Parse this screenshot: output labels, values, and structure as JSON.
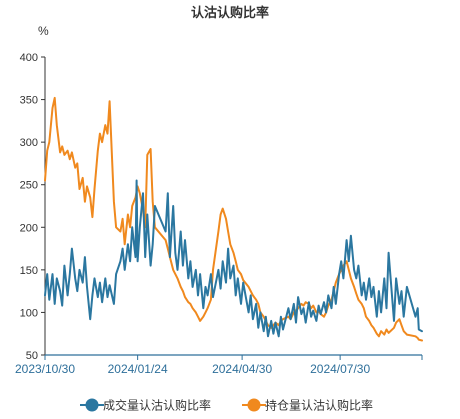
{
  "chart_data": {
    "type": "line",
    "title": "认沽认购比率",
    "unit_label": "%",
    "ylim": [
      50,
      400
    ],
    "yticks": [
      50,
      100,
      150,
      200,
      250,
      300,
      350,
      400
    ],
    "xlim": [
      "2023-10-30",
      "2024-10-14"
    ],
    "xticks": [
      "2023/10/30",
      "2024/01/24",
      "2024/04/30",
      "2024/07/30"
    ],
    "grid": false,
    "legend_position": "bottom",
    "series": [
      {
        "name": "成交量认沽认购比率",
        "color": "#2b77a0",
        "points": [
          [
            "2023-10-30",
            120
          ],
          [
            "2023-11-01",
            145
          ],
          [
            "2023-11-03",
            115
          ],
          [
            "2023-11-06",
            145
          ],
          [
            "2023-11-08",
            110
          ],
          [
            "2023-11-10",
            140
          ],
          [
            "2023-11-13",
            125
          ],
          [
            "2023-11-15",
            108
          ],
          [
            "2023-11-17",
            155
          ],
          [
            "2023-11-20",
            120
          ],
          [
            "2023-11-22",
            145
          ],
          [
            "2023-11-24",
            175
          ],
          [
            "2023-11-27",
            140
          ],
          [
            "2023-11-29",
            125
          ],
          [
            "2023-12-01",
            150
          ],
          [
            "2023-12-04",
            135
          ],
          [
            "2023-12-06",
            165
          ],
          [
            "2023-12-08",
            130
          ],
          [
            "2023-12-11",
            92
          ],
          [
            "2023-12-13",
            120
          ],
          [
            "2023-12-15",
            140
          ],
          [
            "2023-12-18",
            118
          ],
          [
            "2023-12-20",
            135
          ],
          [
            "2023-12-22",
            112
          ],
          [
            "2023-12-25",
            140
          ],
          [
            "2023-12-27",
            118
          ],
          [
            "2023-12-29",
            132
          ],
          [
            "2024-01-02",
            110
          ],
          [
            "2024-01-04",
            145
          ],
          [
            "2024-01-08",
            160
          ],
          [
            "2024-01-10",
            175
          ],
          [
            "2024-01-12",
            150
          ],
          [
            "2024-01-15",
            180
          ],
          [
            "2024-01-17",
            160
          ],
          [
            "2024-01-19",
            200
          ],
          [
            "2024-01-22",
            165
          ],
          [
            "2024-01-23",
            255
          ],
          [
            "2024-01-24",
            160
          ],
          [
            "2024-01-26",
            200
          ],
          [
            "2024-01-29",
            240
          ],
          [
            "2024-01-31",
            165
          ],
          [
            "2024-02-02",
            215
          ],
          [
            "2024-02-05",
            155
          ],
          [
            "2024-02-07",
            180
          ],
          [
            "2024-02-09",
            225
          ],
          [
            "2024-02-19",
            195
          ],
          [
            "2024-02-21",
            240
          ],
          [
            "2024-02-23",
            165
          ],
          [
            "2024-02-26",
            225
          ],
          [
            "2024-02-28",
            170
          ],
          [
            "2024-03-01",
            150
          ],
          [
            "2024-03-04",
            195
          ],
          [
            "2024-03-06",
            155
          ],
          [
            "2024-03-08",
            185
          ],
          [
            "2024-03-11",
            140
          ],
          [
            "2024-03-13",
            160
          ],
          [
            "2024-03-15",
            130
          ],
          [
            "2024-03-18",
            150
          ],
          [
            "2024-03-20",
            120
          ],
          [
            "2024-03-22",
            145
          ],
          [
            "2024-03-25",
            105
          ],
          [
            "2024-03-27",
            130
          ],
          [
            "2024-03-29",
            120
          ],
          [
            "2024-04-01",
            145
          ],
          [
            "2024-04-03",
            118
          ],
          [
            "2024-04-08",
            150
          ],
          [
            "2024-04-10",
            128
          ],
          [
            "2024-04-12",
            160
          ],
          [
            "2024-04-15",
            135
          ],
          [
            "2024-04-17",
            175
          ],
          [
            "2024-04-19",
            140
          ],
          [
            "2024-04-22",
            155
          ],
          [
            "2024-04-24",
            120
          ],
          [
            "2024-04-26",
            140
          ],
          [
            "2024-04-29",
            110
          ],
          [
            "2024-05-01",
            135
          ],
          [
            "2024-05-06",
            100
          ],
          [
            "2024-05-08",
            120
          ],
          [
            "2024-05-10",
            92
          ],
          [
            "2024-05-13",
            110
          ],
          [
            "2024-05-15",
            82
          ],
          [
            "2024-05-17",
            100
          ],
          [
            "2024-05-20",
            78
          ],
          [
            "2024-05-22",
            95
          ],
          [
            "2024-05-24",
            72
          ],
          [
            "2024-05-27",
            90
          ],
          [
            "2024-05-29",
            75
          ],
          [
            "2024-05-31",
            88
          ],
          [
            "2024-06-03",
            72
          ],
          [
            "2024-06-05",
            95
          ],
          [
            "2024-06-07",
            80
          ],
          [
            "2024-06-12",
            105
          ],
          [
            "2024-06-14",
            92
          ],
          [
            "2024-06-17",
            110
          ],
          [
            "2024-06-19",
            88
          ],
          [
            "2024-06-21",
            118
          ],
          [
            "2024-06-24",
            98
          ],
          [
            "2024-06-26",
            105
          ],
          [
            "2024-06-28",
            88
          ],
          [
            "2024-07-01",
            112
          ],
          [
            "2024-07-03",
            95
          ],
          [
            "2024-07-05",
            102
          ],
          [
            "2024-07-08",
            90
          ],
          [
            "2024-07-10",
            108
          ],
          [
            "2024-07-12",
            98
          ],
          [
            "2024-07-15",
            112
          ],
          [
            "2024-07-17",
            100
          ],
          [
            "2024-07-19",
            120
          ],
          [
            "2024-07-22",
            105
          ],
          [
            "2024-07-24",
            130
          ],
          [
            "2024-07-26",
            110
          ],
          [
            "2024-07-29",
            145
          ],
          [
            "2024-07-31",
            160
          ],
          [
            "2024-08-02",
            140
          ],
          [
            "2024-08-05",
            185
          ],
          [
            "2024-08-07",
            160
          ],
          [
            "2024-08-09",
            190
          ],
          [
            "2024-08-12",
            150
          ],
          [
            "2024-08-14",
            140
          ],
          [
            "2024-08-16",
            155
          ],
          [
            "2024-08-19",
            120
          ],
          [
            "2024-08-21",
            135
          ],
          [
            "2024-08-23",
            115
          ],
          [
            "2024-08-26",
            140
          ],
          [
            "2024-08-28",
            118
          ],
          [
            "2024-08-30",
            130
          ],
          [
            "2024-09-02",
            95
          ],
          [
            "2024-09-04",
            125
          ],
          [
            "2024-09-06",
            100
          ],
          [
            "2024-09-09",
            140
          ],
          [
            "2024-09-11",
            105
          ],
          [
            "2024-09-13",
            170
          ],
          [
            "2024-09-18",
            90
          ],
          [
            "2024-09-20",
            140
          ],
          [
            "2024-09-23",
            110
          ],
          [
            "2024-09-25",
            125
          ],
          [
            "2024-09-27",
            95
          ],
          [
            "2024-09-30",
            130
          ],
          [
            "2024-10-08",
            95
          ],
          [
            "2024-10-10",
            105
          ],
          [
            "2024-10-11",
            80
          ],
          [
            "2024-10-14",
            78
          ]
        ]
      },
      {
        "name": "持仓量认沽认购比率",
        "color": "#f0891e",
        "points": [
          [
            "2023-10-30",
            255
          ],
          [
            "2023-11-01",
            290
          ],
          [
            "2023-11-03",
            300
          ],
          [
            "2023-11-06",
            340
          ],
          [
            "2023-11-08",
            352
          ],
          [
            "2023-11-10",
            320
          ],
          [
            "2023-11-13",
            288
          ],
          [
            "2023-11-15",
            295
          ],
          [
            "2023-11-17",
            285
          ],
          [
            "2023-11-20",
            290
          ],
          [
            "2023-11-22",
            280
          ],
          [
            "2023-11-24",
            288
          ],
          [
            "2023-11-27",
            270
          ],
          [
            "2023-11-29",
            275
          ],
          [
            "2023-12-01",
            245
          ],
          [
            "2023-12-04",
            258
          ],
          [
            "2023-12-06",
            230
          ],
          [
            "2023-12-08",
            248
          ],
          [
            "2023-12-11",
            235
          ],
          [
            "2023-12-13",
            212
          ],
          [
            "2023-12-15",
            245
          ],
          [
            "2023-12-18",
            290
          ],
          [
            "2023-12-20",
            310
          ],
          [
            "2023-12-22",
            300
          ],
          [
            "2023-12-25",
            320
          ],
          [
            "2023-12-27",
            310
          ],
          [
            "2023-12-29",
            348
          ],
          [
            "2024-01-02",
            230
          ],
          [
            "2024-01-04",
            200
          ],
          [
            "2024-01-08",
            195
          ],
          [
            "2024-01-10",
            210
          ],
          [
            "2024-01-12",
            180
          ],
          [
            "2024-01-15",
            215
          ],
          [
            "2024-01-17",
            200
          ],
          [
            "2024-01-19",
            225
          ],
          [
            "2024-01-22",
            235
          ],
          [
            "2024-01-24",
            248
          ],
          [
            "2024-01-26",
            240
          ],
          [
            "2024-01-29",
            220
          ],
          [
            "2024-01-31",
            200
          ],
          [
            "2024-02-02",
            285
          ],
          [
            "2024-02-05",
            292
          ],
          [
            "2024-02-07",
            230
          ],
          [
            "2024-02-09",
            200
          ],
          [
            "2024-02-19",
            185
          ],
          [
            "2024-02-21",
            175
          ],
          [
            "2024-02-23",
            165
          ],
          [
            "2024-02-26",
            150
          ],
          [
            "2024-02-28",
            145
          ],
          [
            "2024-03-01",
            140
          ],
          [
            "2024-03-04",
            130
          ],
          [
            "2024-03-06",
            125
          ],
          [
            "2024-03-08",
            118
          ],
          [
            "2024-03-11",
            112
          ],
          [
            "2024-03-13",
            110
          ],
          [
            "2024-03-15",
            105
          ],
          [
            "2024-03-18",
            100
          ],
          [
            "2024-03-20",
            95
          ],
          [
            "2024-03-22",
            90
          ],
          [
            "2024-03-25",
            95
          ],
          [
            "2024-03-27",
            100
          ],
          [
            "2024-03-29",
            105
          ],
          [
            "2024-04-01",
            115
          ],
          [
            "2024-04-03",
            150
          ],
          [
            "2024-04-08",
            195
          ],
          [
            "2024-04-10",
            215
          ],
          [
            "2024-04-12",
            222
          ],
          [
            "2024-04-15",
            210
          ],
          [
            "2024-04-17",
            195
          ],
          [
            "2024-04-19",
            180
          ],
          [
            "2024-04-22",
            170
          ],
          [
            "2024-04-24",
            160
          ],
          [
            "2024-04-26",
            150
          ],
          [
            "2024-04-29",
            145
          ],
          [
            "2024-05-01",
            138
          ],
          [
            "2024-05-06",
            130
          ],
          [
            "2024-05-08",
            125
          ],
          [
            "2024-05-10",
            120
          ],
          [
            "2024-05-13",
            115
          ],
          [
            "2024-05-15",
            110
          ],
          [
            "2024-05-17",
            100
          ],
          [
            "2024-05-20",
            95
          ],
          [
            "2024-05-22",
            90
          ],
          [
            "2024-05-24",
            85
          ],
          [
            "2024-05-27",
            82
          ],
          [
            "2024-05-29",
            85
          ],
          [
            "2024-05-31",
            88
          ],
          [
            "2024-06-03",
            85
          ],
          [
            "2024-06-05",
            90
          ],
          [
            "2024-06-07",
            92
          ],
          [
            "2024-06-12",
            95
          ],
          [
            "2024-06-14",
            92
          ],
          [
            "2024-06-17",
            100
          ],
          [
            "2024-06-19",
            102
          ],
          [
            "2024-06-21",
            105
          ],
          [
            "2024-06-24",
            110
          ],
          [
            "2024-06-26",
            108
          ],
          [
            "2024-06-28",
            112
          ],
          [
            "2024-07-01",
            110
          ],
          [
            "2024-07-03",
            105
          ],
          [
            "2024-07-05",
            108
          ],
          [
            "2024-07-08",
            100
          ],
          [
            "2024-07-10",
            102
          ],
          [
            "2024-07-12",
            98
          ],
          [
            "2024-07-15",
            95
          ],
          [
            "2024-07-17",
            100
          ],
          [
            "2024-07-19",
            108
          ],
          [
            "2024-07-22",
            115
          ],
          [
            "2024-07-24",
            125
          ],
          [
            "2024-07-26",
            135
          ],
          [
            "2024-07-29",
            145
          ],
          [
            "2024-07-31",
            150
          ],
          [
            "2024-08-02",
            155
          ],
          [
            "2024-08-05",
            160
          ],
          [
            "2024-08-07",
            150
          ],
          [
            "2024-08-09",
            140
          ],
          [
            "2024-08-12",
            130
          ],
          [
            "2024-08-14",
            122
          ],
          [
            "2024-08-16",
            115
          ],
          [
            "2024-08-19",
            110
          ],
          [
            "2024-08-21",
            105
          ],
          [
            "2024-08-23",
            95
          ],
          [
            "2024-08-26",
            90
          ],
          [
            "2024-08-28",
            85
          ],
          [
            "2024-08-30",
            82
          ],
          [
            "2024-09-02",
            75
          ],
          [
            "2024-09-04",
            72
          ],
          [
            "2024-09-06",
            78
          ],
          [
            "2024-09-09",
            74
          ],
          [
            "2024-09-11",
            80
          ],
          [
            "2024-09-13",
            76
          ],
          [
            "2024-09-18",
            82
          ],
          [
            "2024-09-20",
            88
          ],
          [
            "2024-09-23",
            92
          ],
          [
            "2024-09-25",
            85
          ],
          [
            "2024-09-27",
            78
          ],
          [
            "2024-09-30",
            74
          ],
          [
            "2024-10-08",
            72
          ],
          [
            "2024-10-10",
            70
          ],
          [
            "2024-10-11",
            68
          ],
          [
            "2024-10-14",
            67
          ]
        ]
      }
    ]
  }
}
